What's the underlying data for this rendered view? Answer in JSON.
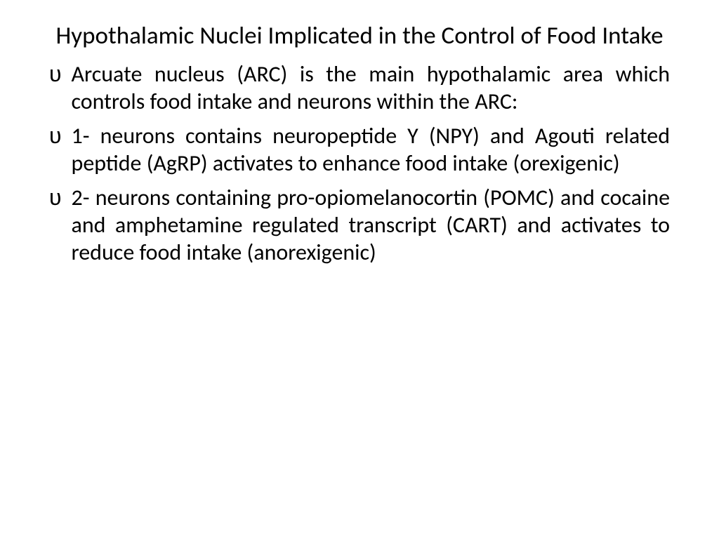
{
  "slide": {
    "title": "Hypothalamic Nuclei Implicated in the Control of Food Intake",
    "bullet_glyph": "υ",
    "paragraphs": [
      "Arcuate nucleus (ARC) is the main hypothalamic area which controls food intake and neurons within the ARC:",
      "1- neurons contains neuropeptide Y (NPY) and Agouti related peptide (AgRP) activates to enhance food intake (orexigenic)",
      "2- neurons containing pro-opiomelanocortin (POMC) and cocaine and amphetamine regulated transcript (CART) and activates to reduce food intake (anorexigenic)"
    ],
    "colors": {
      "background": "#ffffff",
      "text": "#000000"
    },
    "fonts": {
      "title_size": 35,
      "body_size": 32,
      "family": "Calibri"
    }
  }
}
